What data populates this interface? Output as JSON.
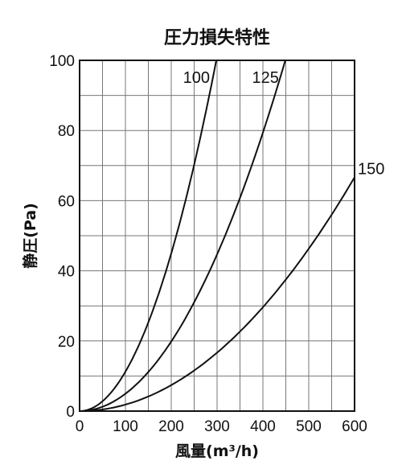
{
  "chart_data": {
    "type": "line",
    "title": "圧力損失特性",
    "xlabel": "風量(m³/h)",
    "ylabel": "静圧(Pa)",
    "xlim": [
      0,
      600
    ],
    "ylim": [
      0,
      100
    ],
    "xticks": [
      "0",
      "100",
      "200",
      "300",
      "400",
      "500",
      "600"
    ],
    "yticks": [
      "0",
      "20",
      "40",
      "60",
      "80",
      "100"
    ],
    "grid": true,
    "x": [
      0,
      50,
      100,
      150,
      200,
      250,
      300,
      350,
      400,
      450,
      500,
      550,
      600
    ],
    "series": [
      {
        "name": "100",
        "values": [
          0,
          3,
          11,
          25,
          45,
          72,
          100,
          null,
          null,
          null,
          null,
          null,
          null
        ]
      },
      {
        "name": "125",
        "values": [
          0,
          1.2,
          5,
          11,
          20,
          31,
          45,
          61,
          79,
          null,
          null,
          null,
          null
        ]
      },
      {
        "name": "150",
        "values": [
          0,
          0.5,
          2,
          4.2,
          7.4,
          11.5,
          16.6,
          22.6,
          29.6,
          37.5,
          46.3,
          56,
          66.7
        ]
      }
    ]
  }
}
